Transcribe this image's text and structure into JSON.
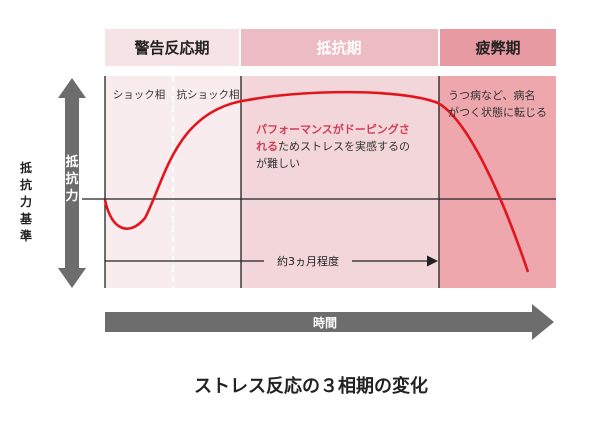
{
  "phases": {
    "alarm": {
      "label": "警告反応期",
      "shock_label": "ショック相",
      "counter_shock_label": "抗ショック相"
    },
    "resistance": {
      "label": "抵抗期"
    },
    "exhaustion": {
      "label": "疲弊期"
    }
  },
  "y_axis": {
    "label": "抵抗力"
  },
  "baseline": {
    "label_chars": [
      "抵",
      "抗",
      "力",
      "基",
      "準"
    ]
  },
  "time_axis": {
    "label": "時間"
  },
  "duration": {
    "label": "約3ヵ月程度"
  },
  "annotations": {
    "resistance_highlight_1": "パフォーマンスがドーピングさ",
    "resistance_highlight_2": "れる",
    "resistance_rest_2": "ためストレスを実感するの",
    "resistance_line_3": "が難しい",
    "exhaustion_line_1": "うつ病など、病名",
    "exhaustion_line_2": "がつく状態に転じる"
  },
  "caption": "ストレス反応の３相期の変化",
  "colors": {
    "alarm_header": "#f5e3e5",
    "resistance_header": "#edbcc2",
    "exhaustion_header": "#e79aa1",
    "alarm_bg": "#f8ecee",
    "resistance_bg": "#f3d6da",
    "exhaustion_bg": "#eda7ad",
    "curve": "#e3151c",
    "highlight_text": "#d23d58",
    "arrow_gray": "#6d6d6d"
  }
}
